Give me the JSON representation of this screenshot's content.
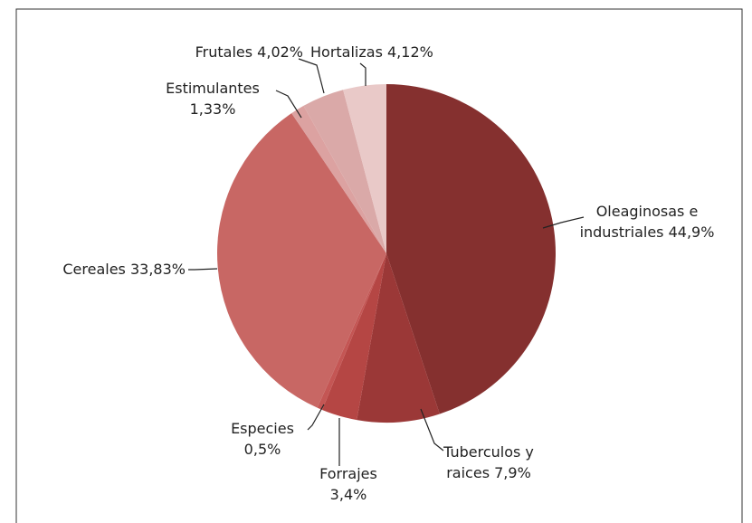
{
  "chart_data": {
    "type": "pie",
    "categories": [
      "Oleaginosas e industriales",
      "Tuberculos y raices",
      "Forrajes",
      "Especies",
      "Cereales",
      "Estimulantes",
      "Frutales",
      "Hortalizas"
    ],
    "values": [
      44.9,
      7.9,
      3.4,
      0.5,
      33.83,
      1.33,
      4.02,
      4.12
    ],
    "value_labels": [
      "44,9%",
      "7,9%",
      "3,4%",
      "0,5%",
      "33,83%",
      "1,33%",
      "4,02%",
      "4,12%"
    ],
    "colors": [
      "#85302f",
      "#9b3837",
      "#b54644",
      "#c45654",
      "#c86764",
      "#dca2a1",
      "#daa9a8",
      "#e9c9c8"
    ]
  }
}
